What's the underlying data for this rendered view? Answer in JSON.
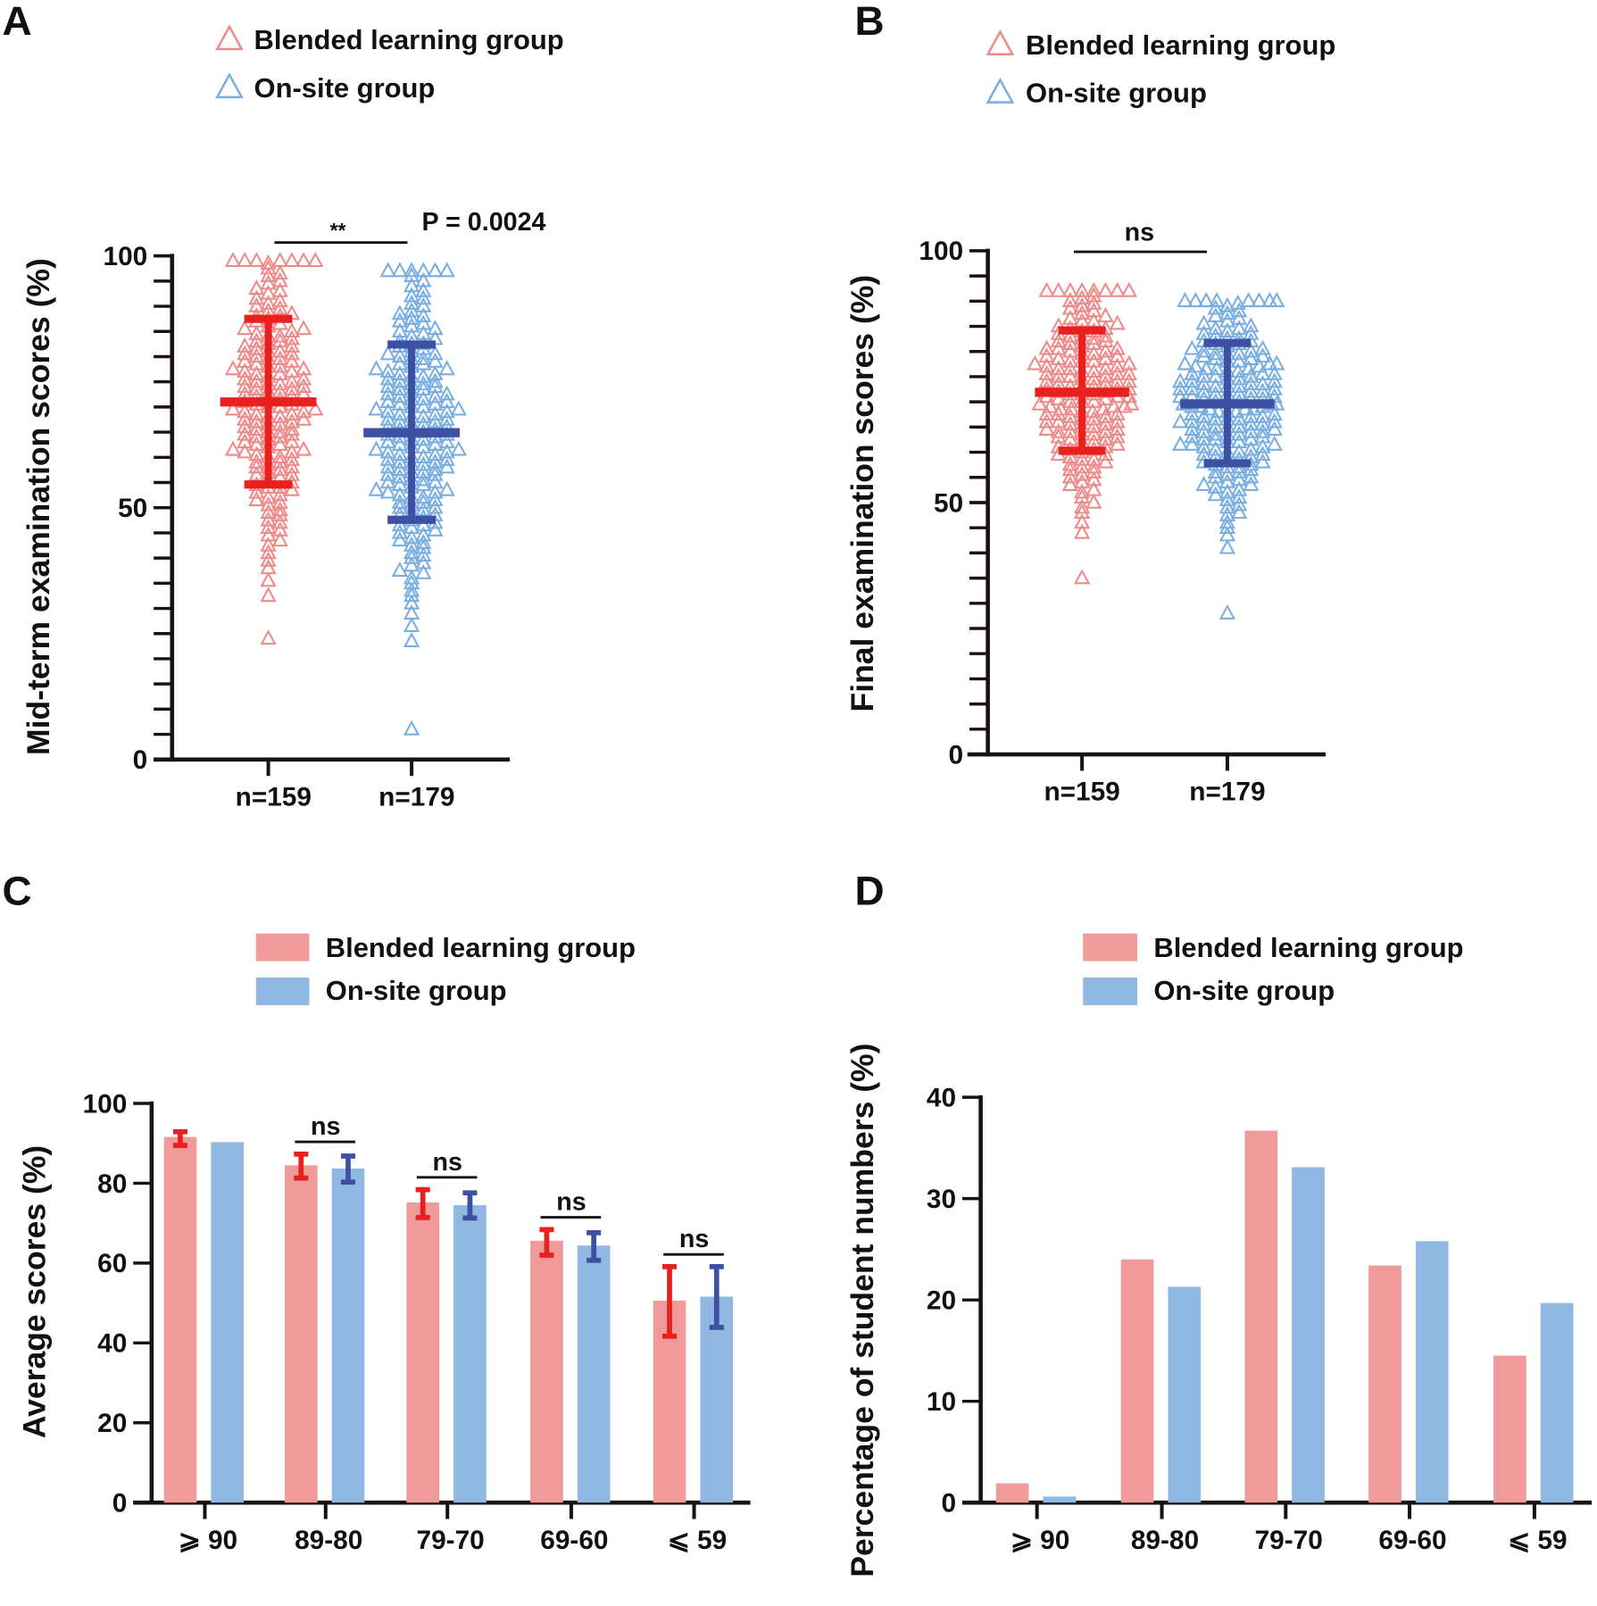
{
  "colors": {
    "blended_fill": "#f09a9a",
    "onsite_fill": "#8fb8e3",
    "blended_marker": "#ef8a8a",
    "onsite_marker": "#79aee2",
    "blended_error": "#e8211e",
    "onsite_error": "#3d50a3",
    "axis": "#1a1210"
  },
  "chart_data": [
    {
      "panel": "A",
      "type": "scatter",
      "marker": "open-triangle",
      "legend": [
        "Blended learning group",
        "On-site group"
      ],
      "legend_placement": "top-left",
      "ylabel": "Mid-term examination scores (%)",
      "ylim": [
        0,
        100
      ],
      "yticks": [
        0,
        50,
        100
      ],
      "minor_tick_step": 5,
      "categories": [
        "n=159",
        "n=179"
      ],
      "groups": [
        {
          "name": "Blended learning group",
          "n": 159,
          "mean": 71.0,
          "sd_upper": 87.5,
          "sd_lower": 54.6,
          "min": 24,
          "max": 99
        },
        {
          "name": "On-site group",
          "n": 179,
          "mean": 64.9,
          "sd_upper": 82.4,
          "sd_lower": 47.6,
          "min": 6,
          "max": 97
        }
      ],
      "significance": {
        "label": "**",
        "p_text": "P = 0.0024"
      }
    },
    {
      "panel": "B",
      "type": "scatter",
      "marker": "open-triangle",
      "legend": [
        "Blended learning group",
        "On-site group"
      ],
      "legend_placement": "top-left",
      "ylabel": "Final examination scores (%)",
      "ylim": [
        0,
        100
      ],
      "yticks": [
        0,
        50,
        100
      ],
      "minor_tick_step": 5,
      "categories": [
        "n=159",
        "n=179"
      ],
      "groups": [
        {
          "name": "Blended learning group",
          "n": 159,
          "mean": 71.9,
          "sd_upper": 84.2,
          "sd_lower": 60.3,
          "min": 35,
          "max": 92
        },
        {
          "name": "On-site group",
          "n": 179,
          "mean": 69.6,
          "sd_upper": 81.7,
          "sd_lower": 57.8,
          "min": 28,
          "max": 90
        }
      ],
      "significance": {
        "label": "ns"
      }
    },
    {
      "panel": "C",
      "type": "bar",
      "legend": [
        "Blended learning group",
        "On-site group"
      ],
      "legend_placement": "top",
      "ylabel": "Average scores (%)",
      "ylim": [
        0,
        100
      ],
      "yticks": [
        0,
        20,
        40,
        60,
        80,
        100
      ],
      "categories": [
        "⩾ 90",
        "89-80",
        "79-70",
        "69-60",
        "⩽ 59"
      ],
      "series": [
        {
          "name": "Blended learning group",
          "values": [
            91.6,
            84.5,
            75.2,
            65.6,
            50.6
          ],
          "err_high": [
            92.9,
            87.3,
            78.4,
            68.4,
            59.1
          ],
          "err_low": [
            89.5,
            81.3,
            71.4,
            62.0,
            41.7
          ]
        },
        {
          "name": "On-site group",
          "values": [
            90.3,
            83.7,
            74.5,
            64.4,
            51.6
          ],
          "err_high": [
            null,
            86.8,
            77.6,
            67.6,
            59.1
          ],
          "err_low": [
            null,
            80.3,
            71.3,
            60.7,
            43.9
          ]
        }
      ],
      "significance": [
        "",
        "ns",
        "ns",
        "ns",
        "ns"
      ]
    },
    {
      "panel": "D",
      "type": "bar",
      "legend": [
        "Blended learning group",
        "On-site group"
      ],
      "legend_placement": "top",
      "ylabel": "Percentage of student numbers (%)",
      "ylim": [
        0,
        40
      ],
      "yticks": [
        0,
        10,
        20,
        30,
        40
      ],
      "categories": [
        "⩾ 90",
        "89-80",
        "79-70",
        "69-60",
        "⩽ 59"
      ],
      "series": [
        {
          "name": "Blended learning group",
          "values": [
            1.9,
            24.0,
            36.7,
            23.4,
            14.5
          ]
        },
        {
          "name": "On-site group",
          "values": [
            0.6,
            21.3,
            33.1,
            25.8,
            19.7
          ]
        }
      ]
    }
  ]
}
